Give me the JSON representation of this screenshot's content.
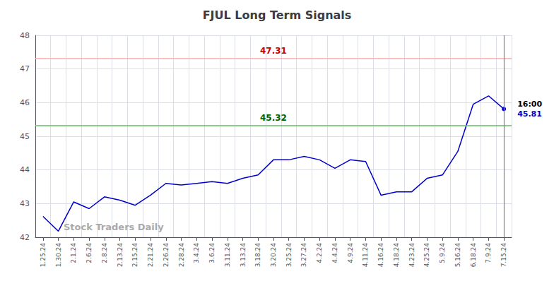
{
  "chart_data": {
    "type": "line",
    "title": "FJUL Long Term Signals",
    "categories": [
      "1.25.24",
      "1.30.24",
      "2.1.24",
      "2.6.24",
      "2.8.24",
      "2.13.24",
      "2.15.24",
      "2.21.24",
      "2.26.24",
      "2.28.24",
      "3.4.24",
      "3.6.24",
      "3.11.24",
      "3.13.24",
      "3.18.24",
      "3.20.24",
      "3.25.24",
      "3.27.24",
      "4.2.24",
      "4.4.24",
      "4.9.24",
      "4.11.24",
      "4.16.24",
      "4.18.24",
      "4.23.24",
      "4.25.24",
      "5.9.24",
      "5.16.24",
      "6.18.24",
      "7.9.24",
      "7.15.24"
    ],
    "values": [
      42.62,
      42.18,
      43.05,
      42.85,
      43.2,
      43.1,
      42.95,
      43.25,
      43.6,
      43.55,
      43.6,
      43.65,
      43.6,
      43.75,
      43.85,
      44.3,
      44.3,
      44.4,
      44.3,
      44.05,
      44.3,
      44.25,
      43.25,
      43.35,
      43.35,
      43.75,
      43.85,
      44.55,
      45.95,
      46.2,
      45.81
    ],
    "color": "#0000cc",
    "ylim": [
      42,
      48
    ],
    "yticks": [
      42,
      43,
      44,
      45,
      46,
      47,
      48
    ],
    "grid": true,
    "reference_lines": [
      {
        "value": 47.31,
        "label": "47.31",
        "color": "#ffaaaa",
        "label_color": "#cc0000"
      },
      {
        "value": 45.32,
        "label": "45.32",
        "color": "#66bb66",
        "label_color": "#006600"
      }
    ],
    "vertical_line": {
      "x": "7.15.24",
      "color": "#888888"
    },
    "end_labels": [
      {
        "text": "16:00",
        "color": "#000000"
      },
      {
        "text": "45.81",
        "color": "#0000cc"
      }
    ],
    "watermark": {
      "text": "Stock Traders Daily",
      "color": "#aaaaaa"
    }
  }
}
